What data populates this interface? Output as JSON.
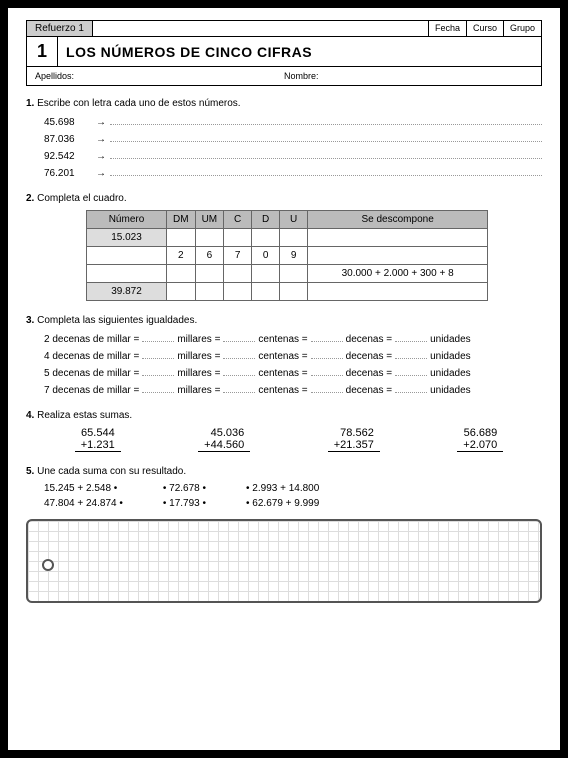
{
  "header": {
    "refuerzo": "Refuerzo 1",
    "fecha": "Fecha",
    "curso": "Curso",
    "grupo": "Grupo",
    "num": "1",
    "title": "LOS NÚMEROS DE CINCO CIFRAS",
    "apellidos": "Apellidos:",
    "nombre": "Nombre:"
  },
  "ex1": {
    "num": "1.",
    "prompt": "Escribe con letra cada uno de estos números.",
    "items": [
      "45.698",
      "87.036",
      "92.542",
      "76.201"
    ]
  },
  "ex2": {
    "num": "2.",
    "prompt": "Completa el cuadro.",
    "cols": {
      "numero": "Número",
      "dm": "DM",
      "um": "UM",
      "c": "C",
      "d": "D",
      "u": "U",
      "desc": "Se descompone"
    },
    "rows": [
      {
        "numero": "15.023",
        "dm": "",
        "um": "",
        "c": "",
        "d": "",
        "u": "",
        "desc": ""
      },
      {
        "numero": "",
        "dm": "2",
        "um": "6",
        "c": "7",
        "d": "0",
        "u": "9",
        "desc": ""
      },
      {
        "numero": "",
        "dm": "",
        "um": "",
        "c": "",
        "d": "",
        "u": "",
        "desc": "30.000 + 2.000 + 300 + 8"
      },
      {
        "numero": "39.872",
        "dm": "",
        "um": "",
        "c": "",
        "d": "",
        "u": "",
        "desc": ""
      }
    ]
  },
  "ex3": {
    "num": "3.",
    "prompt": "Completa las siguientes igualdades.",
    "labels": {
      "millares": "millares =",
      "centenas": "centenas =",
      "decenas": "decenas =",
      "unidades": "unidades"
    },
    "rows": [
      "2 decenas de millar =",
      "4 decenas de millar =",
      "5 decenas de millar =",
      "7 decenas de millar ="
    ]
  },
  "ex4": {
    "num": "4.",
    "prompt": "Realiza estas sumas.",
    "sums": [
      {
        "a": "65.544",
        "b": "1.231"
      },
      {
        "a": "45.036",
        "b": "44.560"
      },
      {
        "a": "78.562",
        "b": "21.357"
      },
      {
        "a": "56.689",
        "b": "2.070"
      }
    ]
  },
  "ex5": {
    "num": "5.",
    "prompt": "Une cada suma con su resultado.",
    "left": [
      "15.245 + 2.548",
      "47.804 + 24.874"
    ],
    "mid": [
      "72.678",
      "17.793"
    ],
    "right": [
      "2.993 + 14.800",
      "62.679 + 9.999"
    ]
  }
}
